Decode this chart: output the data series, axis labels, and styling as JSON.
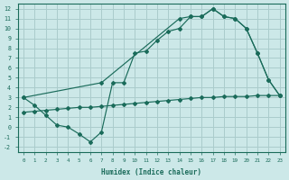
{
  "bg_color": "#cce8e8",
  "grid_color": "#aacccc",
  "line_color": "#1a6b5a",
  "xlabel": "Humidex (Indice chaleur)",
  "xlim": [
    -0.5,
    23.5
  ],
  "ylim": [
    -2.5,
    12.5
  ],
  "xticks": [
    0,
    1,
    2,
    3,
    4,
    5,
    6,
    7,
    8,
    9,
    10,
    11,
    12,
    13,
    14,
    15,
    16,
    17,
    18,
    19,
    20,
    21,
    22,
    23
  ],
  "yticks": [
    -2,
    -1,
    0,
    1,
    2,
    3,
    4,
    5,
    6,
    7,
    8,
    9,
    10,
    11,
    12
  ],
  "line1_x": [
    0,
    1,
    2,
    3,
    4,
    5,
    6,
    7,
    8,
    9,
    10,
    11,
    12,
    13,
    14,
    15,
    16,
    17,
    18,
    19,
    20,
    21,
    22,
    23
  ],
  "line1_y": [
    3.0,
    2.2,
    1.2,
    0.2,
    0.0,
    -0.7,
    -1.5,
    -0.5,
    4.5,
    4.5,
    7.5,
    7.7,
    8.8,
    9.7,
    10.0,
    11.2,
    11.2,
    12.0,
    11.2,
    11.0,
    10.0,
    7.5,
    4.8,
    3.2
  ],
  "line2_x": [
    0,
    7,
    14,
    15,
    16,
    17,
    18,
    19,
    20,
    21,
    22,
    23
  ],
  "line2_y": [
    3.0,
    4.5,
    11.0,
    11.2,
    11.2,
    12.0,
    11.2,
    11.0,
    10.0,
    7.5,
    4.8,
    3.2
  ],
  "line3_x": [
    0,
    1,
    2,
    3,
    4,
    5,
    6,
    7,
    8,
    9,
    10,
    11,
    12,
    13,
    14,
    15,
    16,
    17,
    18,
    19,
    20,
    21,
    22,
    23
  ],
  "line3_y": [
    1.5,
    1.6,
    1.7,
    1.8,
    1.9,
    2.0,
    2.0,
    2.1,
    2.2,
    2.3,
    2.4,
    2.5,
    2.6,
    2.7,
    2.8,
    2.9,
    3.0,
    3.0,
    3.1,
    3.1,
    3.1,
    3.2,
    3.2,
    3.2
  ]
}
